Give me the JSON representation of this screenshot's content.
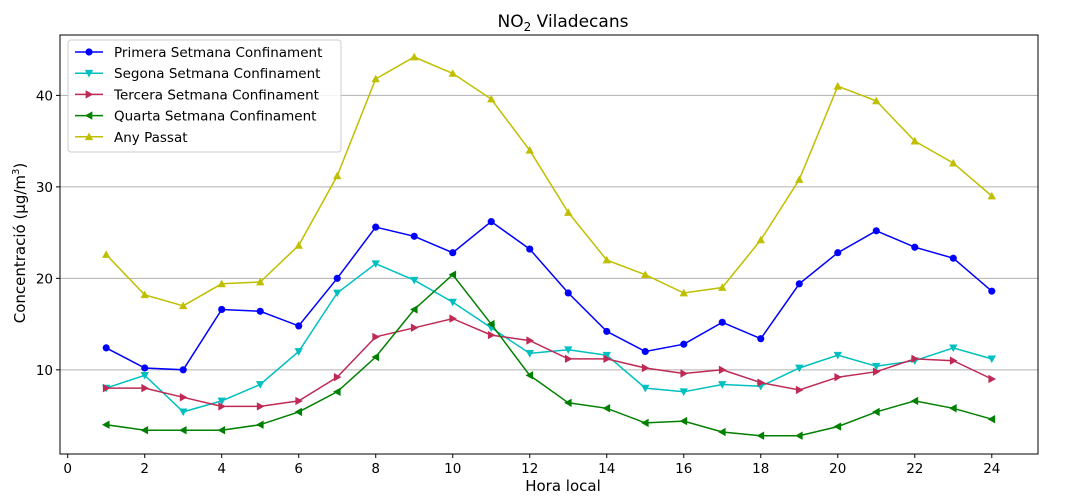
{
  "chart_data": {
    "type": "line",
    "title": "NO",
    "title_sub": "2",
    "title_suffix": " Viladecans",
    "xlabel": "Hora local",
    "ylabel": "Concentració (μg/m",
    "ylabel_sup": "3",
    "ylabel_suffix": ")",
    "xlim": [
      -0.2,
      25.2
    ],
    "ylim": [
      0.8,
      46.6
    ],
    "xticks": [
      0,
      2,
      4,
      6,
      8,
      10,
      12,
      14,
      16,
      18,
      20,
      22,
      24
    ],
    "yticks": [
      10,
      20,
      30,
      40
    ],
    "grid": "horizontal",
    "legend_position": "top-left",
    "x": [
      1,
      2,
      3,
      4,
      5,
      6,
      7,
      8,
      9,
      10,
      11,
      12,
      13,
      14,
      15,
      16,
      17,
      18,
      19,
      20,
      21,
      22,
      23,
      24
    ],
    "series": [
      {
        "name": "Primera Setmana Confinament",
        "color": "#0000ff",
        "marker": "circle",
        "values": [
          12.4,
          10.2,
          10.0,
          16.6,
          16.4,
          14.8,
          20.0,
          25.6,
          24.6,
          22.8,
          26.2,
          23.2,
          18.4,
          14.2,
          12.0,
          12.8,
          15.2,
          13.4,
          19.4,
          22.8,
          25.2,
          23.4,
          22.2,
          18.6
        ]
      },
      {
        "name": "Segona Setmana Confinament",
        "color": "#00bfbf",
        "marker": "triangle-down",
        "values": [
          8.0,
          9.4,
          5.4,
          6.6,
          8.4,
          12.0,
          18.4,
          21.6,
          19.8,
          17.4,
          14.6,
          11.8,
          12.2,
          11.6,
          8.0,
          7.6,
          8.4,
          8.2,
          10.2,
          11.6,
          10.4,
          11.0,
          12.4,
          11.2
        ]
      },
      {
        "name": "Tercera Setmana Confinament",
        "color": "#bf2a55",
        "marker": "triangle-right",
        "values": [
          8.0,
          8.0,
          7.0,
          6.0,
          6.0,
          6.6,
          9.2,
          13.6,
          14.6,
          15.6,
          13.8,
          13.2,
          11.2,
          11.2,
          10.2,
          9.6,
          10.0,
          8.6,
          7.8,
          9.2,
          9.8,
          11.2,
          11.0,
          9.0
        ]
      },
      {
        "name": "Quarta Setmana Confinament",
        "color": "#008000",
        "marker": "triangle-left",
        "values": [
          4.0,
          3.4,
          3.4,
          3.4,
          4.0,
          5.4,
          7.6,
          11.4,
          16.6,
          20.4,
          15.0,
          9.4,
          6.4,
          5.8,
          4.2,
          4.4,
          3.2,
          2.8,
          2.8,
          3.8,
          5.4,
          6.6,
          5.8,
          4.6
        ]
      },
      {
        "name": "Any Passat",
        "color": "#bfbf00",
        "marker": "triangle-up",
        "values": [
          22.6,
          18.2,
          17.0,
          19.4,
          19.6,
          23.6,
          31.2,
          41.8,
          44.2,
          42.4,
          39.6,
          34.0,
          27.2,
          22.0,
          20.4,
          18.4,
          19.0,
          24.2,
          30.8,
          41.0,
          39.4,
          35.0,
          32.6,
          29.0
        ]
      }
    ]
  }
}
